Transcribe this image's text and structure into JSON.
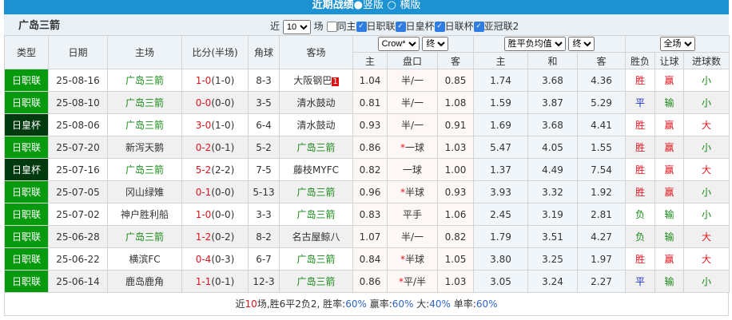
{
  "title": {
    "text": "近期战绩",
    "opt1": "竖版",
    "opt2": "横版",
    "selected": "竖版"
  },
  "team": "广岛三箭",
  "filters": {
    "near_label": "近",
    "count": "10",
    "unit": "场",
    "same_home": "同主",
    "same_home_checked": false,
    "leagues": [
      {
        "label": "日职联",
        "checked": true
      },
      {
        "label": "日皇杯",
        "checked": true
      },
      {
        "label": "日联杯",
        "checked": true
      },
      {
        "label": "亚冠联2",
        "checked": true
      }
    ]
  },
  "headers": {
    "type": "类型",
    "date": "日期",
    "home": "主场",
    "score": "比分(半场)",
    "corner": "角球",
    "away": "客场",
    "company": "Crow*",
    "odds_stage": "终",
    "europe": "胜平负均值",
    "europe_stage": "终",
    "scope": "全场",
    "sub": [
      "主",
      "盘口",
      "客",
      "主",
      "和",
      "客",
      "胜负",
      "让球",
      "进球数"
    ]
  },
  "colors": {
    "league": "#079a0e",
    "cup": "#003a0e",
    "team": "#178a17",
    "score": "#e0141e",
    "titlebar": "#1d92d3"
  },
  "rows": [
    {
      "type": "日职联",
      "cup": false,
      "date": "25-08-16",
      "home": "广岛三箭",
      "hh": true,
      "ft": "1-0",
      "ht": "(1-0)",
      "corner": "8-3",
      "away": "大阪钢巴",
      "ah": false,
      "rank": "1",
      "o1": "1.04",
      "hc": "半/一",
      "star": false,
      "o2": "0.85",
      "e1": "1.74",
      "e2": "3.68",
      "e3": "4.36",
      "res": "胜",
      "ah_res": "赢",
      "ou": "小"
    },
    {
      "type": "日职联",
      "cup": false,
      "date": "25-08-10",
      "home": "广岛三箭",
      "hh": true,
      "ft": "0-0",
      "ht": "(0-0)",
      "corner": "3-5",
      "away": "清水鼓动",
      "ah": false,
      "o1": "0.81",
      "hc": "半/一",
      "star": false,
      "o2": "1.08",
      "e1": "1.59",
      "e2": "3.87",
      "e3": "5.29",
      "res": "平",
      "ah_res": "输",
      "ou": "小"
    },
    {
      "type": "日皇杯",
      "cup": true,
      "date": "25-08-06",
      "home": "广岛三箭",
      "hh": true,
      "ft": "3-0",
      "ht": "(1-0)",
      "corner": "6-4",
      "away": "清水鼓动",
      "ah": false,
      "o1": "0.93",
      "hc": "半/一",
      "star": false,
      "o2": "0.91",
      "e1": "1.69",
      "e2": "3.68",
      "e3": "4.41",
      "res": "胜",
      "ah_res": "赢",
      "ou": "大"
    },
    {
      "type": "日职联",
      "cup": false,
      "date": "25-07-20",
      "home": "新泻天鹅",
      "hh": false,
      "ft": "0-2",
      "ht": "(0-1)",
      "corner": "5-2",
      "away": "广岛三箭",
      "ah": true,
      "o1": "0.86",
      "hc": "一球",
      "star": true,
      "o2": "1.03",
      "e1": "5.47",
      "e2": "4.05",
      "e3": "1.55",
      "res": "胜",
      "ah_res": "赢",
      "ou": "小"
    },
    {
      "type": "日皇杯",
      "cup": true,
      "date": "25-07-16",
      "home": "广岛三箭",
      "hh": true,
      "ft": "5-2",
      "ht": "(2-2)",
      "corner": "7-5",
      "away": "藤枝MYFC",
      "ah": false,
      "o1": "0.82",
      "hc": "一球",
      "star": false,
      "o2": "1.00",
      "e1": "1.37",
      "e2": "4.49",
      "e3": "7.54",
      "res": "胜",
      "ah_res": "赢",
      "ou": "大"
    },
    {
      "type": "日职联",
      "cup": false,
      "date": "25-07-05",
      "home": "冈山绿雉",
      "hh": false,
      "ft": "0-1",
      "ht": "(0-0)",
      "corner": "5-13",
      "away": "广岛三箭",
      "ah": true,
      "o1": "0.96",
      "hc": "半球",
      "star": true,
      "o2": "0.93",
      "e1": "3.93",
      "e2": "3.32",
      "e3": "1.92",
      "res": "胜",
      "ah_res": "赢",
      "ou": "小"
    },
    {
      "type": "日职联",
      "cup": false,
      "date": "25-07-02",
      "home": "神户胜利船",
      "hh": false,
      "ft": "1-0",
      "ht": "(0-0)",
      "corner": "3-3",
      "away": "广岛三箭",
      "ah": true,
      "o1": "0.83",
      "hc": "平手",
      "star": false,
      "o2": "1.06",
      "e1": "2.45",
      "e2": "3.19",
      "e3": "2.81",
      "res": "负",
      "ah_res": "输",
      "ou": "小"
    },
    {
      "type": "日职联",
      "cup": false,
      "date": "25-06-28",
      "home": "广岛三箭",
      "hh": true,
      "ft": "1-2",
      "ht": "(0-2)",
      "corner": "8-2",
      "away": "名古屋鲸八",
      "ah": false,
      "o1": "1.07",
      "hc": "半/一",
      "star": false,
      "o2": "0.82",
      "e1": "1.79",
      "e2": "3.51",
      "e3": "4.27",
      "res": "负",
      "ah_res": "输",
      "ou": "大"
    },
    {
      "type": "日职联",
      "cup": false,
      "date": "25-06-22",
      "home": "横滨FC",
      "hh": false,
      "ft": "0-4",
      "ht": "(0-3)",
      "corner": "6-7",
      "away": "广岛三箭",
      "ah": true,
      "o1": "0.84",
      "hc": "半球",
      "star": true,
      "o2": "1.05",
      "e1": "3.80",
      "e2": "3.25",
      "e3": "1.97",
      "res": "胜",
      "ah_res": "赢",
      "ou": "大"
    },
    {
      "type": "日职联",
      "cup": false,
      "date": "25-06-14",
      "home": "鹿岛鹿角",
      "hh": false,
      "ft": "1-1",
      "ht": "(0-1)",
      "corner": "12-3",
      "away": "广岛三箭",
      "ah": true,
      "o1": "0.86",
      "hc": "平/半",
      "star": true,
      "o2": "1.03",
      "e1": "3.05",
      "e2": "3.24",
      "e3": "2.27",
      "res": "平",
      "ah_res": "输",
      "ou": "小"
    }
  ],
  "summary": {
    "p1": "近",
    "n": "10",
    "p2": "场,胜6平2负2, 胜率:",
    "win": "60%",
    "p3": " 赢率:",
    "ahwin": "60%",
    "p4": " 大:",
    "big": "40%",
    "p5": " 单率:",
    "odd": "60%"
  }
}
